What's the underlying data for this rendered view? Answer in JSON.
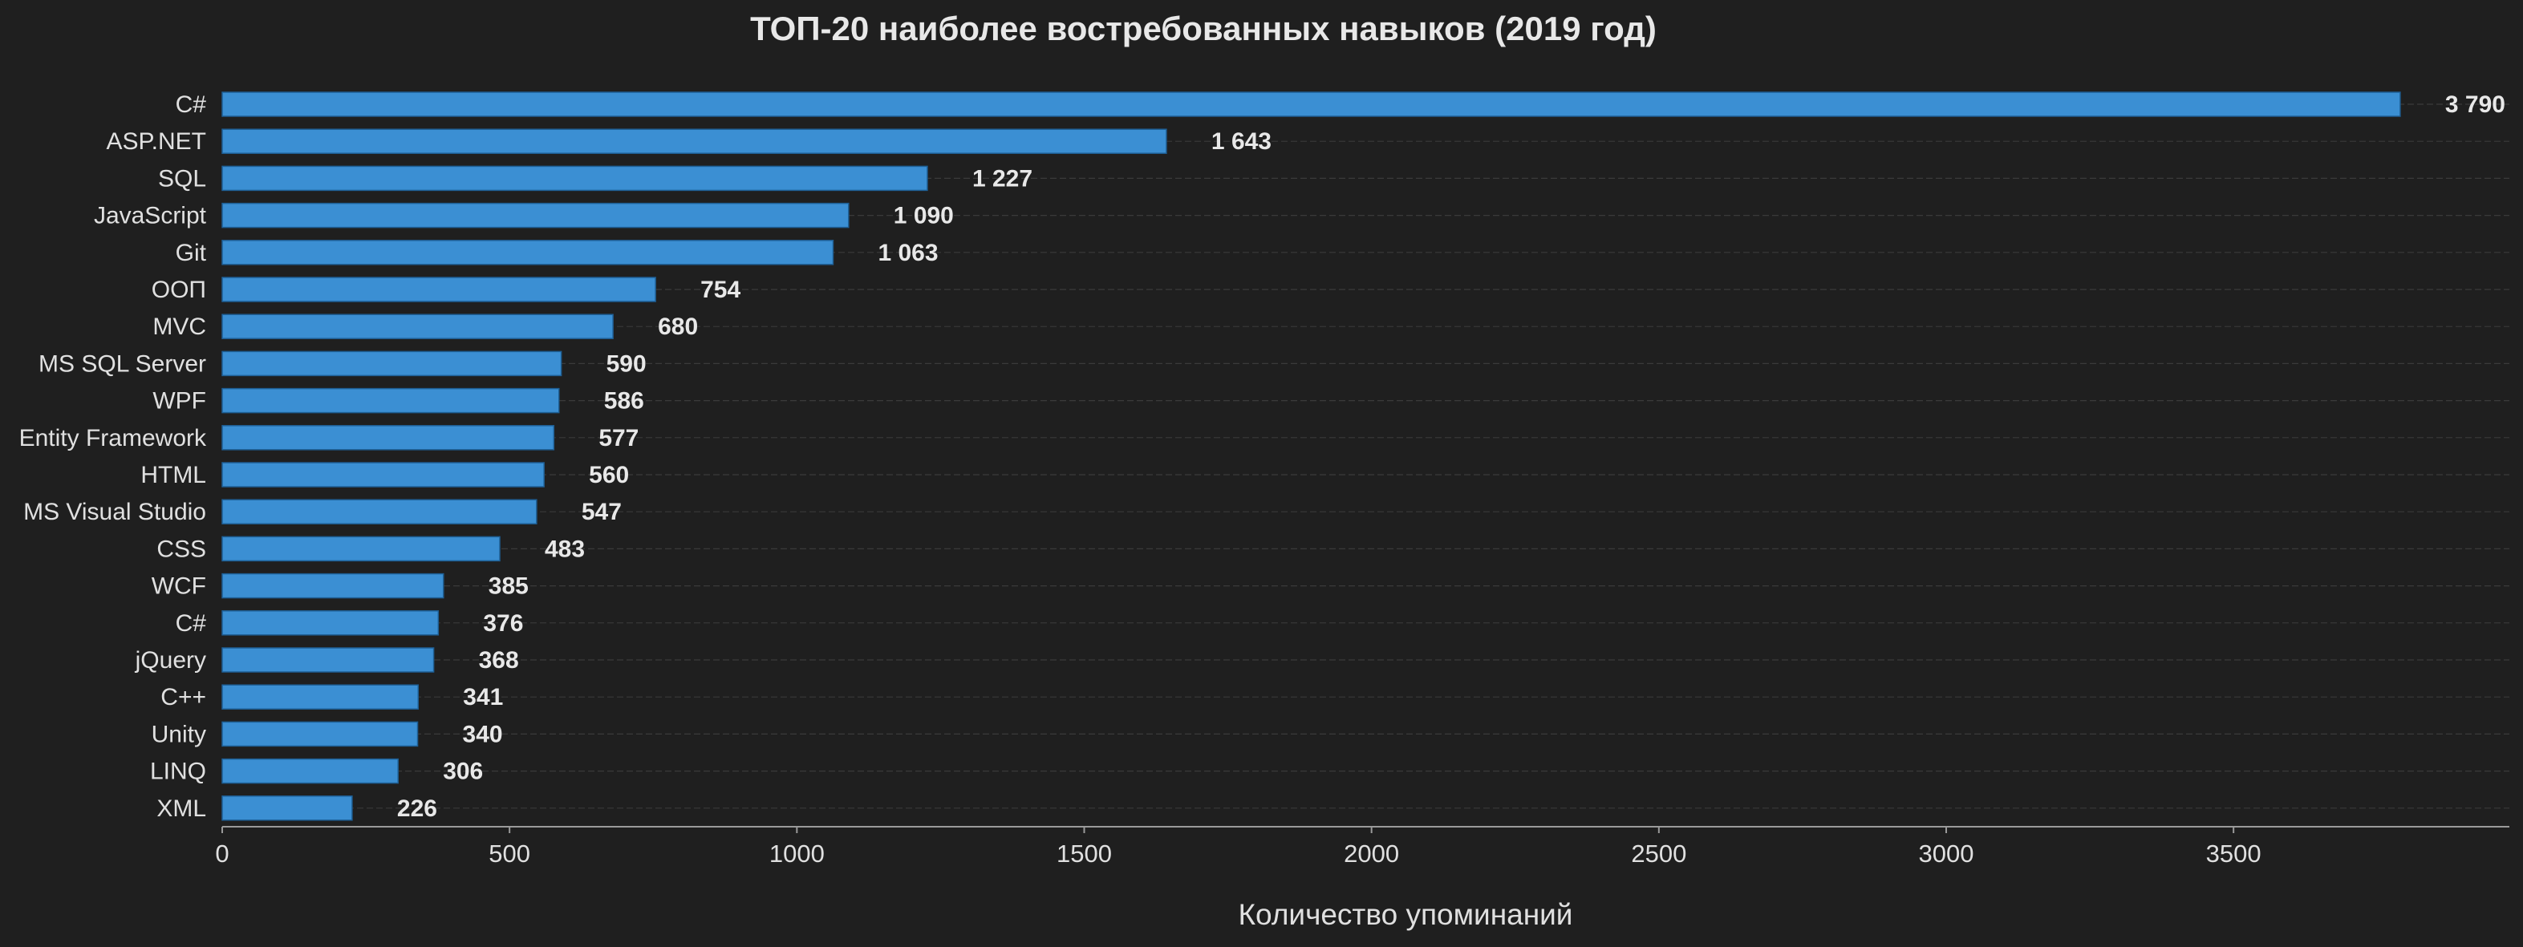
{
  "chart_data": {
    "type": "bar",
    "orientation": "horizontal",
    "title": "ТОП-20 наиболее востребованных навыков (2019 год)",
    "xlabel": "Количество упоминаний",
    "ylabel": "",
    "categories": [
      "C#",
      "ASP.NET",
      "SQL",
      "JavaScript",
      "Git",
      "ООП",
      "MVC",
      "MS SQL Server",
      "WPF",
      "Entity Framework",
      "HTML",
      "MS Visual Studio",
      "CSS",
      "WCF",
      "C#",
      "jQuery",
      "C++",
      "Unity",
      "LINQ",
      "XML"
    ],
    "values": [
      3790,
      1643,
      1227,
      1090,
      1063,
      754,
      680,
      590,
      586,
      577,
      560,
      547,
      483,
      385,
      376,
      368,
      341,
      340,
      306,
      226
    ],
    "value_labels": [
      "3 790",
      "1 643",
      "1 227",
      "1 090",
      "1 063",
      "754",
      "680",
      "590",
      "586",
      "577",
      "560",
      "547",
      "483",
      "385",
      "376",
      "368",
      "341",
      "340",
      "306",
      "226"
    ],
    "xlim": [
      0,
      3980
    ],
    "xticks": [
      0,
      500,
      1000,
      1500,
      2000,
      2500,
      3000,
      3500
    ],
    "xtick_labels": [
      "0",
      "500",
      "1000",
      "1500",
      "2000",
      "2500",
      "3000",
      "3500"
    ],
    "grid": "horizontal dashed",
    "colors": {
      "background": "#1f1f1f",
      "bar": "#3b8fd3",
      "bar_edge": "#1e5f95",
      "text": "#e0e0e0",
      "grid": "#3a3a3a",
      "axis": "#9a9a9a"
    }
  }
}
